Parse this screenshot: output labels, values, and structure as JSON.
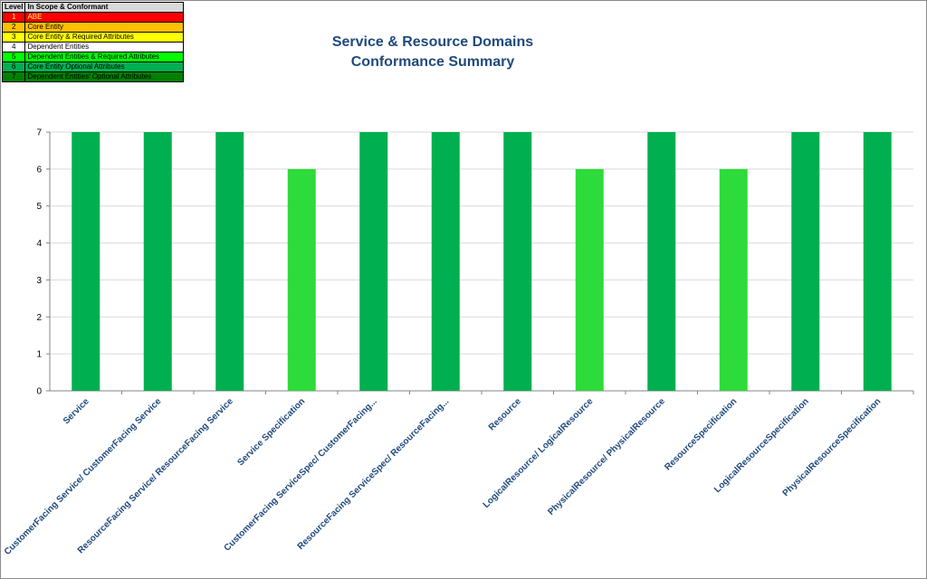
{
  "legend": {
    "header_level": "Level",
    "header_desc": "In Scope & Conformant",
    "items": [
      {
        "level": "1",
        "label": "ABE",
        "bg": "#ff0000",
        "fg": "#ffff66"
      },
      {
        "level": "2",
        "label": "Core Entity",
        "bg": "#ffc000",
        "fg": "#000000"
      },
      {
        "level": "3",
        "label": "Core Entity & Required Attributes",
        "bg": "#ffff00",
        "fg": "#000000"
      },
      {
        "level": "4",
        "label": "Dependent Entities",
        "bg": "#ffffff",
        "fg": "#000000"
      },
      {
        "level": "5",
        "label": "Dependent Entities & Required Attributes",
        "bg": "#00ff00",
        "fg": "#000000"
      },
      {
        "level": "6",
        "label": "Core Entity Optional Attributes",
        "bg": "#00b050",
        "fg": "#000000"
      },
      {
        "level": "7",
        "label": "Dependent Entities' Optional Attributes",
        "bg": "#008000",
        "fg": "#000000"
      }
    ]
  },
  "chart_data": {
    "type": "bar",
    "title_line1": "Service & Resource Domains",
    "title_line2": "Conformance Summary",
    "xlabel": "",
    "ylabel": "",
    "ylim": [
      0,
      7
    ],
    "yticks": [
      "0",
      "1",
      "2",
      "3",
      "4",
      "5",
      "6",
      "7"
    ],
    "grid": true,
    "categories": [
      "Service",
      "CustomerFacing Service/ CustomerFacing Service",
      "ResourceFacing Service/ ResourceFacing Service",
      "Service Specification",
      "CustomerFacing ServiceSpec/ CustomerFacing...",
      "ResourceFacing ServiceSpec/ ResourceFacing...",
      "Resource",
      "LogicalResource/ LogicalResource",
      "PhysicalResource/ PhysicalResource",
      "ResourceSpecification",
      "LogicalResourceSpecification",
      "PhysicalResourceSpecification"
    ],
    "values": [
      7,
      7,
      7,
      6,
      7,
      7,
      7,
      6,
      7,
      6,
      7,
      7
    ],
    "colors": {
      "7": "#00b050",
      "6": "#2ddb3a"
    },
    "axis_color": "#1f497d"
  }
}
